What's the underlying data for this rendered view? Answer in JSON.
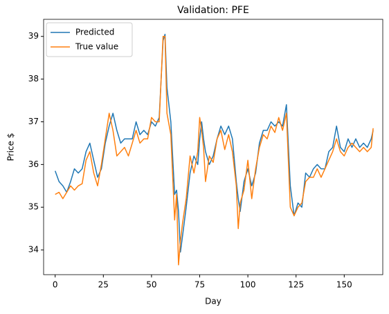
{
  "chart_data": {
    "type": "line",
    "title": "Validation: PFE",
    "xlabel": "Day",
    "ylabel": "Price $",
    "x": [
      0,
      2,
      4,
      6,
      8,
      10,
      12,
      14,
      16,
      18,
      20,
      22,
      24,
      26,
      28,
      30,
      32,
      34,
      36,
      38,
      40,
      42,
      44,
      46,
      48,
      50,
      52,
      54,
      56,
      57,
      58,
      60,
      62,
      63,
      64,
      65,
      66,
      68,
      70,
      72,
      74,
      75,
      76,
      77,
      78,
      80,
      82,
      84,
      86,
      88,
      90,
      92,
      94,
      95,
      96,
      98,
      100,
      102,
      104,
      106,
      108,
      110,
      112,
      114,
      116,
      118,
      120,
      122,
      124,
      126,
      128,
      130,
      132,
      134,
      136,
      138,
      140,
      142,
      144,
      146,
      148,
      150,
      152,
      154,
      156,
      158,
      160,
      162,
      164,
      165
    ],
    "series": [
      {
        "name": "Predicted",
        "color": "#1f77b4",
        "values": [
          35.85,
          35.6,
          35.5,
          35.35,
          35.6,
          35.9,
          35.8,
          35.9,
          36.3,
          36.5,
          36.1,
          35.7,
          35.9,
          36.5,
          36.9,
          37.2,
          36.8,
          36.5,
          36.6,
          36.6,
          36.6,
          37.0,
          36.7,
          36.8,
          36.7,
          37.0,
          36.9,
          37.1,
          38.9,
          39.05,
          37.8,
          37.0,
          35.3,
          35.4,
          34.9,
          33.95,
          34.3,
          35.0,
          35.8,
          36.2,
          36.0,
          36.6,
          37.0,
          36.6,
          36.3,
          36.0,
          36.2,
          36.6,
          36.9,
          36.7,
          36.9,
          36.6,
          35.6,
          35.2,
          34.9,
          35.6,
          35.9,
          35.5,
          35.8,
          36.5,
          36.8,
          36.8,
          37.0,
          36.9,
          37.0,
          36.9,
          37.4,
          35.5,
          34.8,
          35.1,
          35.0,
          35.8,
          35.7,
          35.9,
          36.0,
          35.9,
          35.9,
          36.3,
          36.4,
          36.9,
          36.4,
          36.3,
          36.6,
          36.4,
          36.6,
          36.4,
          36.5,
          36.4,
          36.6,
          36.8
        ]
      },
      {
        "name": "True value",
        "color": "#ff7f0e",
        "values": [
          35.3,
          35.35,
          35.2,
          35.35,
          35.5,
          35.4,
          35.5,
          35.55,
          36.1,
          36.3,
          35.8,
          35.5,
          36.0,
          36.6,
          37.2,
          36.8,
          36.2,
          36.3,
          36.4,
          36.2,
          36.5,
          36.8,
          36.5,
          36.6,
          36.6,
          37.1,
          37.0,
          37.0,
          39.0,
          39.0,
          37.2,
          36.7,
          34.7,
          35.3,
          33.65,
          34.2,
          34.6,
          35.2,
          36.2,
          35.8,
          36.3,
          37.1,
          36.8,
          36.4,
          35.6,
          36.2,
          36.05,
          36.6,
          36.8,
          36.35,
          36.7,
          36.3,
          35.5,
          34.5,
          35.1,
          35.4,
          36.1,
          35.2,
          35.9,
          36.4,
          36.7,
          36.6,
          36.9,
          36.75,
          37.1,
          36.8,
          37.2,
          35.0,
          34.8,
          35.0,
          35.1,
          35.6,
          35.7,
          35.7,
          35.9,
          35.7,
          35.9,
          36.1,
          36.3,
          36.6,
          36.3,
          36.2,
          36.4,
          36.5,
          36.4,
          36.3,
          36.4,
          36.3,
          36.4,
          36.85
        ]
      }
    ],
    "xlim": [
      -6,
      170
    ],
    "xticks": [
      0,
      25,
      50,
      75,
      100,
      125,
      150
    ],
    "ylim": [
      33.42,
      39.4
    ],
    "yticks": [
      34,
      35,
      36,
      37,
      38,
      39
    ],
    "legend": "upper left"
  }
}
